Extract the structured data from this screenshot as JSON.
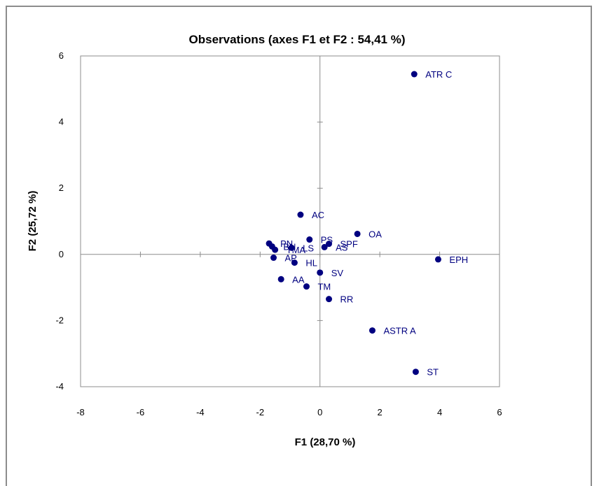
{
  "chart_data": {
    "type": "scatter",
    "title": "Observations (axes F1 et F2 : 54,41 %)",
    "xlabel": "F1 (28,70 %)",
    "ylabel": "F2 (25,72 %)",
    "xlim": [
      -8,
      6
    ],
    "ylim": [
      -4,
      6
    ],
    "xticks": [
      "-8",
      "-6",
      "-4",
      "-2",
      "0",
      "2",
      "4",
      "6"
    ],
    "yticks": [
      "-4",
      "-2",
      "0",
      "2",
      "4",
      "6"
    ],
    "grid": false,
    "point_color": "#000080",
    "points": [
      {
        "label": "ATR C",
        "x": 3.15,
        "y": 5.45
      },
      {
        "label": "AC",
        "x": -0.65,
        "y": 1.2
      },
      {
        "label": "OA",
        "x": 1.25,
        "y": 0.62
      },
      {
        "label": "PS",
        "x": -0.35,
        "y": 0.45
      },
      {
        "label": "SPF",
        "x": 0.3,
        "y": 0.32
      },
      {
        "label": "AS",
        "x": 0.15,
        "y": 0.22
      },
      {
        "label": "PN",
        "x": -1.7,
        "y": 0.33
      },
      {
        "label": "BN",
        "x": -1.6,
        "y": 0.24
      },
      {
        "label": "TMA",
        "x": -1.5,
        "y": 0.14
      },
      {
        "label": "LS",
        "x": -0.95,
        "y": 0.2
      },
      {
        "label": "AP",
        "x": -1.55,
        "y": -0.1
      },
      {
        "label": "HL",
        "x": -0.85,
        "y": -0.25
      },
      {
        "label": "EPH",
        "x": 3.95,
        "y": -0.15
      },
      {
        "label": "SV",
        "x": 0.0,
        "y": -0.55
      },
      {
        "label": "AA",
        "x": -1.3,
        "y": -0.75
      },
      {
        "label": "TM",
        "x": -0.45,
        "y": -0.97
      },
      {
        "label": "RR",
        "x": 0.3,
        "y": -1.35
      },
      {
        "label": "ASTR A",
        "x": 1.75,
        "y": -2.3
      },
      {
        "label": "ST",
        "x": 3.2,
        "y": -3.55
      }
    ]
  }
}
